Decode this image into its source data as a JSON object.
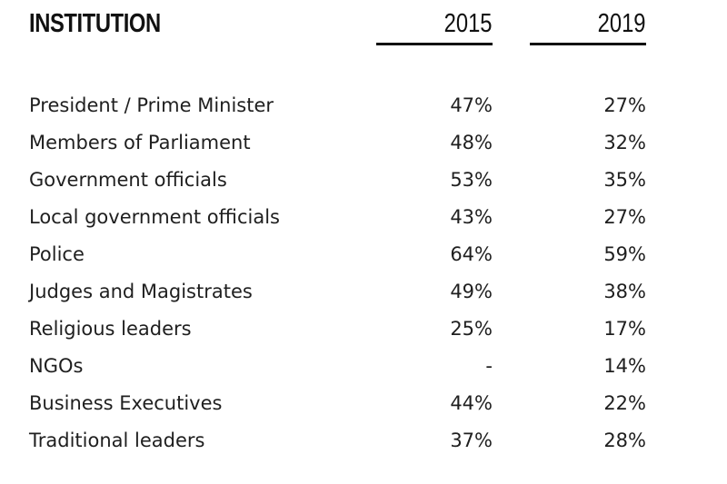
{
  "chart_data": {
    "type": "table",
    "columns": [
      "INSTITUTION",
      "2015",
      "2019"
    ],
    "rows": [
      {
        "institution": "President / Prime Minister",
        "v2015": "47%",
        "v2019": "27%"
      },
      {
        "institution": "Members of Parliament",
        "v2015": "48%",
        "v2019": "32%"
      },
      {
        "institution": "Government officials",
        "v2015": "53%",
        "v2019": "35%"
      },
      {
        "institution": "Local government officials",
        "v2015": "43%",
        "v2019": "27%"
      },
      {
        "institution": "Police",
        "v2015": "64%",
        "v2019": "59%"
      },
      {
        "institution": "Judges and Magistrates",
        "v2015": "49%",
        "v2019": "38%"
      },
      {
        "institution": "Religious leaders",
        "v2015": "25%",
        "v2019": "17%"
      },
      {
        "institution": "NGOs",
        "v2015": "-",
        "v2019": "14%"
      },
      {
        "institution": "Business Executives",
        "v2015": "44%",
        "v2019": "22%"
      },
      {
        "institution": "Traditional leaders",
        "v2015": "37%",
        "v2019": "28%"
      }
    ]
  }
}
